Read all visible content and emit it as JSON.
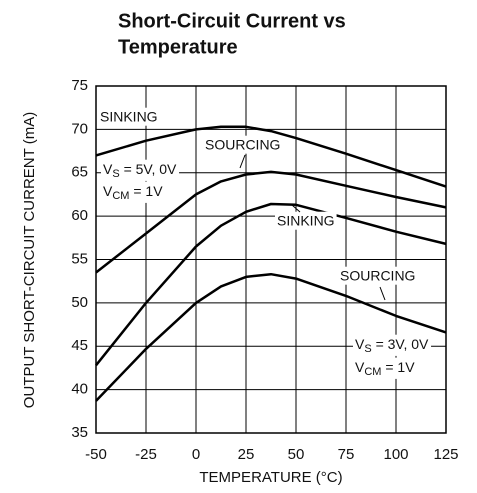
{
  "chart_data": {
    "type": "line",
    "title": [
      "Short-Circuit Current vs",
      "Temperature"
    ],
    "x_label": "TEMPERATURE (°C)",
    "y_label": "OUTPUT SHORT-CIRCUIT CURRENT (mA)",
    "x": [
      -50,
      -25,
      0,
      12.5,
      25,
      37.5,
      50,
      75,
      100,
      125
    ],
    "series": [
      {
        "name": "SINKING",
        "color": "#000000",
        "values": [
          67.0,
          68.7,
          70.0,
          70.3,
          70.3,
          69.8,
          69.0,
          67.2,
          65.3,
          63.4
        ]
      },
      {
        "name": "SOURCING",
        "color": "#000000",
        "values": [
          53.5,
          58.0,
          62.5,
          64.0,
          64.8,
          65.1,
          64.8,
          63.5,
          62.2,
          61.0
        ]
      },
      {
        "name": "SINKING",
        "color": "#000000",
        "values": [
          42.8,
          50.0,
          56.5,
          58.9,
          60.5,
          61.4,
          61.3,
          59.8,
          58.2,
          56.8
        ]
      },
      {
        "name": "SOURCING",
        "color": "#000000",
        "values": [
          38.7,
          44.7,
          50.0,
          51.9,
          53.0,
          53.3,
          52.8,
          50.8,
          48.5,
          46.6
        ]
      }
    ],
    "annotations": [
      {
        "main": "V",
        "sub": "S",
        "rest": " = 5V, 0V"
      },
      {
        "main": "V",
        "sub": "CM",
        "rest": " = 1V"
      },
      {
        "main": "V",
        "sub": "S",
        "rest": " = 3V, 0V"
      },
      {
        "main": "V",
        "sub": "CM",
        "rest": " = 1V"
      }
    ],
    "xlim": [
      -50,
      125
    ],
    "xticks": [
      -50,
      -25,
      0,
      25,
      50,
      75,
      100,
      125
    ],
    "ylim": [
      35,
      75
    ],
    "yticks": [
      35,
      40,
      45,
      50,
      55,
      60,
      65,
      70,
      75
    ],
    "grid": true
  }
}
